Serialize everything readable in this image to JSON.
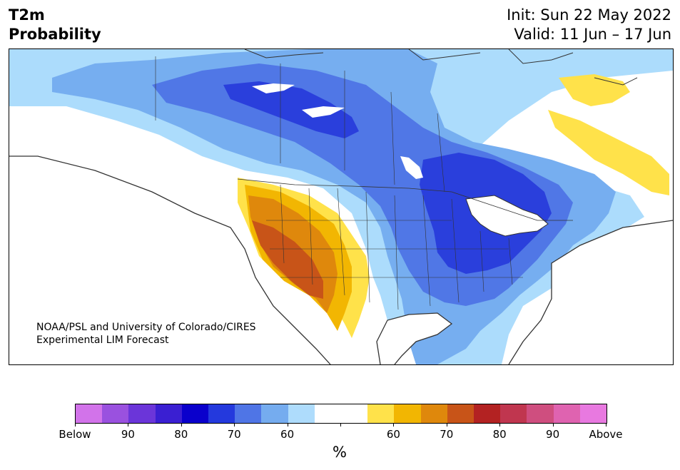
{
  "header": {
    "title_line1": "T2m",
    "title_line2": "Probability",
    "init": "Init: Sun 22 May 2022",
    "valid": "Valid: 11 Jun – 17 Jun"
  },
  "credit": {
    "line1": "NOAA/PSL and University of Colorado/CIRES",
    "line2": "Experimental LIM Forecast"
  },
  "colorbar": {
    "units": "%",
    "colors": [
      "#d273ea",
      "#9a51df",
      "#6b35d9",
      "#3a1fd2",
      "#0a00cc",
      "#2439dd",
      "#4f75e6",
      "#75acef",
      "#aedcfc",
      "#ffffff",
      "#ffffff",
      "#ffe24a",
      "#f2b602",
      "#df880c",
      "#c85418",
      "#b32222",
      "#c0364f",
      "#cf4e7f",
      "#df63b0",
      "#e879e0"
    ],
    "tick_labels": [
      "Below",
      "90",
      "80",
      "70",
      "60",
      "",
      "60",
      "70",
      "80",
      "90",
      "Above"
    ]
  },
  "colors": {
    "cold_strong": "#2a3fdc",
    "cold_mid": "#5077e6",
    "cold_light": "#76aef0",
    "cold_faint": "#acdcfc",
    "warm_faint": "#ffe24a",
    "warm_light": "#f2b602",
    "warm_mid": "#df880c",
    "warm_strong": "#c85418",
    "coast": "#333333"
  }
}
